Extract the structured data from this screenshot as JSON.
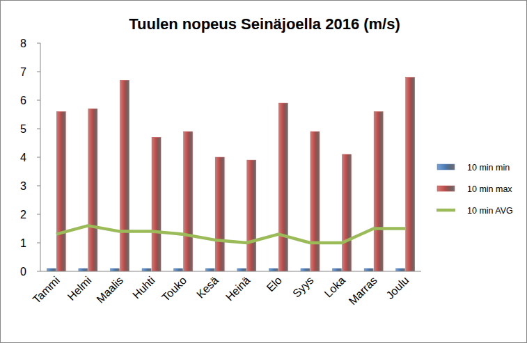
{
  "chart_data": {
    "type": "bar",
    "title": "Tuulen nopeus Seinäjoella 2016 (m/s)",
    "categories": [
      "Tammi",
      "Helmi",
      "Maalis",
      "Huhti",
      "Touko",
      "Kesä",
      "Heinä",
      "Elo",
      "Syys",
      "Loka",
      "Marras",
      "Joulu"
    ],
    "series": [
      {
        "name": "10 min min",
        "color": "#4f81bd",
        "type": "bar",
        "values": [
          0.1,
          0.1,
          0.1,
          0.1,
          0.1,
          0.1,
          0.1,
          0.1,
          0.1,
          0.1,
          0.1,
          0.1
        ]
      },
      {
        "name": "10 min max",
        "color": "#c0504d",
        "type": "bar",
        "values": [
          5.6,
          5.7,
          6.7,
          4.7,
          4.9,
          4.0,
          3.9,
          5.9,
          4.9,
          4.1,
          5.6,
          6.8
        ]
      },
      {
        "name": "10 min AVG",
        "color": "#9bbb59",
        "type": "line",
        "values": [
          1.3,
          1.6,
          1.4,
          1.4,
          1.3,
          1.1,
          1.0,
          1.3,
          1.0,
          1.0,
          1.5,
          1.5
        ]
      }
    ],
    "ylim": [
      0,
      8
    ],
    "yticks": [
      0,
      1,
      2,
      3,
      4,
      5,
      6,
      7,
      8
    ],
    "grid": false,
    "legend": "right"
  }
}
